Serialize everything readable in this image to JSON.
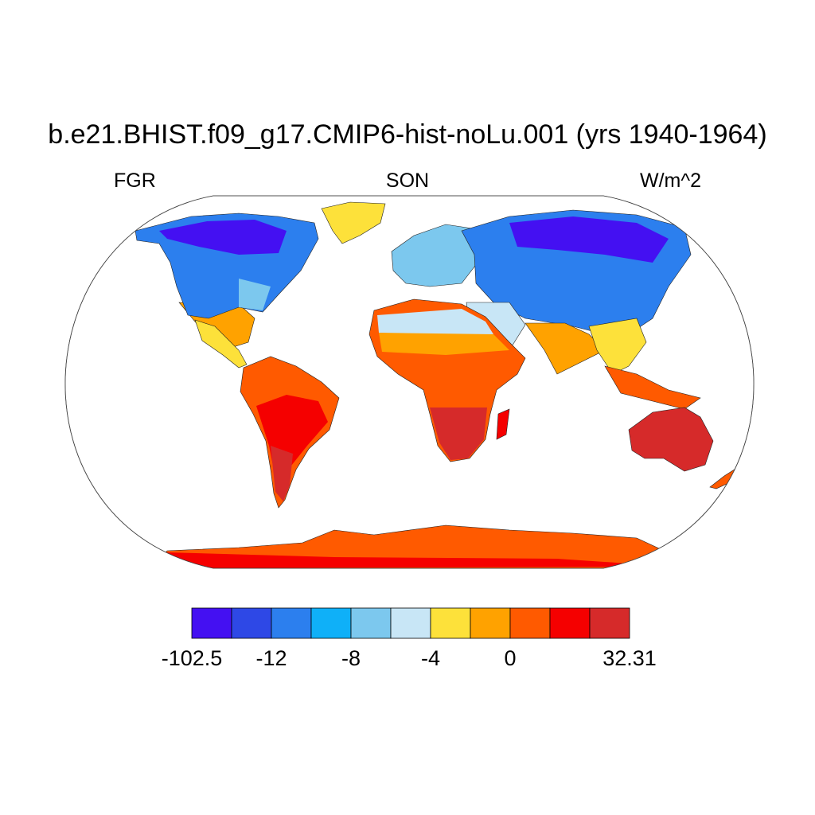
{
  "title": "b.e21.BHIST.f09_g17.CMIP6-hist-noLu.001 (yrs 1940-1964)",
  "left_label": "FGR",
  "center_label": "SON",
  "right_label": "W/m^2",
  "colorbar": {
    "colors": [
      "#4410f2",
      "#2e48e6",
      "#2c7fee",
      "#0fb0f8",
      "#7cc8ee",
      "#c8e6f6",
      "#fde13a",
      "#ffa200",
      "#ff5a00",
      "#f50000",
      "#d62a2a"
    ],
    "labels": [
      "-102.5",
      "-12",
      "-8",
      "-4",
      "0",
      "32.31"
    ]
  },
  "legend_colors": {
    "ocean": "#ffffff",
    "coastline": "#000000"
  }
}
